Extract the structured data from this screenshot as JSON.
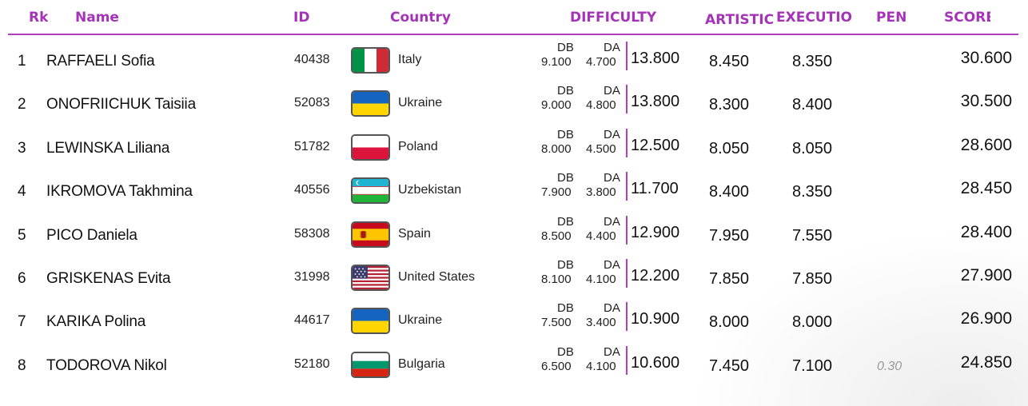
{
  "header": {
    "rk": "Rk",
    "name": "Name",
    "id": "ID",
    "country": "Country",
    "difficulty": "DIFFICULTY",
    "artistic": "ARTISTIC",
    "execution": "EXECUTIOI",
    "pen": "PEN",
    "score": "SCORE"
  },
  "colors": {
    "accent": "#a533b8",
    "text": "#111111",
    "muted": "#999999"
  },
  "rows": [
    {
      "rk": "1",
      "name": "RAFFAELI Sofia",
      "id": "40438",
      "flag_icon": "italy-flag-icon",
      "country": "Italy",
      "db_label": "DB",
      "da_label": "DA",
      "db": "9.100",
      "da": "4.700",
      "difficulty": "13.800",
      "artistic": "8.450",
      "execution": "8.350",
      "pen": "",
      "score": "30.600"
    },
    {
      "rk": "2",
      "name": "ONOFRIICHUK Taisiia",
      "id": "52083",
      "flag_icon": "ukraine-flag-icon",
      "country": "Ukraine",
      "db_label": "DB",
      "da_label": "DA",
      "db": "9.000",
      "da": "4.800",
      "difficulty": "13.800",
      "artistic": "8.300",
      "execution": "8.400",
      "pen": "",
      "score": "30.500"
    },
    {
      "rk": "3",
      "name": "LEWINSKA Liliana",
      "id": "51782",
      "flag_icon": "poland-flag-icon",
      "country": "Poland",
      "db_label": "DB",
      "da_label": "DA",
      "db": "8.000",
      "da": "4.500",
      "difficulty": "12.500",
      "artistic": "8.050",
      "execution": "8.050",
      "pen": "",
      "score": "28.600"
    },
    {
      "rk": "4",
      "name": "IKROMOVA Takhmina",
      "id": "40556",
      "flag_icon": "uzbekistan-flag-icon",
      "country": "Uzbekistan",
      "db_label": "DB",
      "da_label": "DA",
      "db": "7.900",
      "da": "3.800",
      "difficulty": "11.700",
      "artistic": "8.400",
      "execution": "8.350",
      "pen": "",
      "score": "28.450"
    },
    {
      "rk": "5",
      "name": "PICO Daniela",
      "id": "58308",
      "flag_icon": "spain-flag-icon",
      "country": "Spain",
      "db_label": "DB",
      "da_label": "DA",
      "db": "8.500",
      "da": "4.400",
      "difficulty": "12.900",
      "artistic": "7.950",
      "execution": "7.550",
      "pen": "",
      "score": "28.400"
    },
    {
      "rk": "6",
      "name": "GRISKENAS Evita",
      "id": "31998",
      "flag_icon": "united-states-flag-icon",
      "country": "United States",
      "db_label": "DB",
      "da_label": "DA",
      "db": "8.100",
      "da": "4.100",
      "difficulty": "12.200",
      "artistic": "7.850",
      "execution": "7.850",
      "pen": "",
      "score": "27.900"
    },
    {
      "rk": "7",
      "name": "KARIKA Polina",
      "id": "44617",
      "flag_icon": "ukraine-flag-icon",
      "country": "Ukraine",
      "db_label": "DB",
      "da_label": "DA",
      "db": "7.500",
      "da": "3.400",
      "difficulty": "10.900",
      "artistic": "8.000",
      "execution": "8.000",
      "pen": "",
      "score": "26.900"
    },
    {
      "rk": "8",
      "name": "TODOROVA Nikol",
      "id": "52180",
      "flag_icon": "bulgaria-flag-icon",
      "country": "Bulgaria",
      "db_label": "DB",
      "da_label": "DA",
      "db": "6.500",
      "da": "4.100",
      "difficulty": "10.600",
      "artistic": "7.450",
      "execution": "7.100",
      "pen": "0.30",
      "score": "24.850"
    }
  ]
}
